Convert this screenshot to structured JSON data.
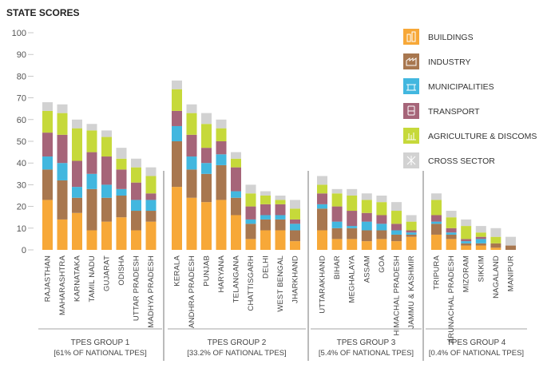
{
  "chart_data": {
    "type": "bar",
    "stacked": true,
    "title": "STATE SCORES",
    "ylim": [
      0,
      100
    ],
    "yticks": [
      0,
      10,
      20,
      30,
      40,
      50,
      60,
      70,
      80,
      90,
      100
    ],
    "series": [
      {
        "name": "BUILDINGS",
        "color": "#f7a838",
        "icon": "buildings-icon"
      },
      {
        "name": "INDUSTRY",
        "color": "#a8774f",
        "icon": "industry-icon"
      },
      {
        "name": "MUNICIPALITIES",
        "color": "#42b7df",
        "icon": "municipalities-icon"
      },
      {
        "name": "TRANSPORT",
        "color": "#a66579",
        "icon": "transport-icon"
      },
      {
        "name": "AGRICULTURE & DISCOMS",
        "color": "#c6d93a",
        "icon": "agriculture-icon"
      },
      {
        "name": "CROSS SECTOR",
        "color": "#d2d2d2",
        "icon": "cross-sector-icon"
      }
    ],
    "groups": [
      {
        "label": "TPES GROUP 1",
        "sublabel": "[61% OF NATIONAL TPES]",
        "states": [
          {
            "name": "RAJASTHAN",
            "values": [
              23,
              14,
              6,
              11,
              10,
              4
            ]
          },
          {
            "name": "MAHARASHTRA",
            "values": [
              14,
              18,
              8,
              13,
              10,
              4
            ]
          },
          {
            "name": "KARNATAKA",
            "values": [
              17,
              7,
              5,
              12,
              15,
              4
            ]
          },
          {
            "name": "TAMIL NADU",
            "values": [
              9,
              19,
              7,
              10,
              10,
              3
            ]
          },
          {
            "name": "GUJARAT",
            "values": [
              13,
              11,
              6,
              13,
              9,
              3
            ]
          },
          {
            "name": "ODISHA",
            "values": [
              15,
              10,
              3,
              9,
              5,
              5
            ]
          },
          {
            "name": "UTTAR PRADESH",
            "values": [
              9,
              9,
              5,
              8,
              7,
              4
            ]
          },
          {
            "name": "MADHYA PRADESH",
            "values": [
              13,
              5,
              5,
              3,
              8,
              4
            ]
          }
        ]
      },
      {
        "label": "TPES GROUP 2",
        "sublabel": "[33.2% OF NATIONAL TPES]",
        "states": [
          {
            "name": "KERALA",
            "values": [
              29,
              21,
              7,
              7,
              10,
              4
            ]
          },
          {
            "name": "ANDHRA PRADESH",
            "values": [
              24,
              13,
              6,
              10,
              10,
              4
            ]
          },
          {
            "name": "PUNJAB",
            "values": [
              22,
              13,
              5,
              7,
              11,
              5
            ]
          },
          {
            "name": "HARYANA",
            "values": [
              23,
              16,
              5,
              6,
              6,
              4
            ]
          },
          {
            "name": "TELANGANA",
            "values": [
              16,
              8,
              3,
              11,
              4,
              3
            ]
          },
          {
            "name": "CHATTISGARH",
            "values": [
              5,
              7,
              2,
              6,
              6,
              4
            ]
          },
          {
            "name": "DELHI",
            "values": [
              9,
              5,
              2,
              5,
              4,
              2
            ]
          },
          {
            "name": "WEST BENGAL",
            "values": [
              9,
              5,
              2,
              5,
              2,
              2
            ]
          },
          {
            "name": "JHARKHAND",
            "values": [
              4,
              5,
              3,
              2,
              5,
              4
            ]
          }
        ]
      },
      {
        "label": "TPES GROUP 3",
        "sublabel": "[5.4% OF NATIONAL TPES]",
        "states": [
          {
            "name": "UTTARAKHAND",
            "values": [
              9,
              10,
              2,
              5,
              4,
              4
            ]
          },
          {
            "name": "BIHAR",
            "values": [
              5,
              5,
              3,
              7,
              6,
              2
            ]
          },
          {
            "name": "MEGHALAYA",
            "values": [
              5,
              5,
              1,
              7,
              7,
              3
            ]
          },
          {
            "name": "ASSAM",
            "values": [
              4,
              5,
              4,
              4,
              6,
              3
            ]
          },
          {
            "name": "GOA",
            "values": [
              5,
              4,
              3,
              4,
              6,
              3
            ]
          },
          {
            "name": "HIMACHAL PRADESH",
            "values": [
              4,
              3,
              2,
              3,
              6,
              4
            ]
          },
          {
            "name": "JAMMU & KASHMIR",
            "values": [
              6,
              1,
              1,
              1,
              4,
              3
            ]
          }
        ]
      },
      {
        "label": "TPES GROUP 4",
        "sublabel": "[0.4% OF NATIONAL TPES]",
        "states": [
          {
            "name": "TRIPURA",
            "values": [
              7,
              5,
              1,
              3,
              7,
              3
            ]
          },
          {
            "name": "ARUNACHAL PRADESH",
            "values": [
              5,
              2,
              1,
              2,
              5,
              3
            ]
          },
          {
            "name": "MIZORAM",
            "values": [
              2,
              1,
              1,
              1,
              6,
              3
            ]
          },
          {
            "name": "SIKKIM",
            "values": [
              2,
              1,
              2,
              1,
              2,
              3
            ]
          },
          {
            "name": "NAGALAND",
            "values": [
              1,
              2,
              0,
              0,
              3,
              4
            ]
          },
          {
            "name": "MANIPUR",
            "values": [
              0,
              2,
              0,
              0,
              0,
              4
            ]
          }
        ]
      }
    ]
  }
}
